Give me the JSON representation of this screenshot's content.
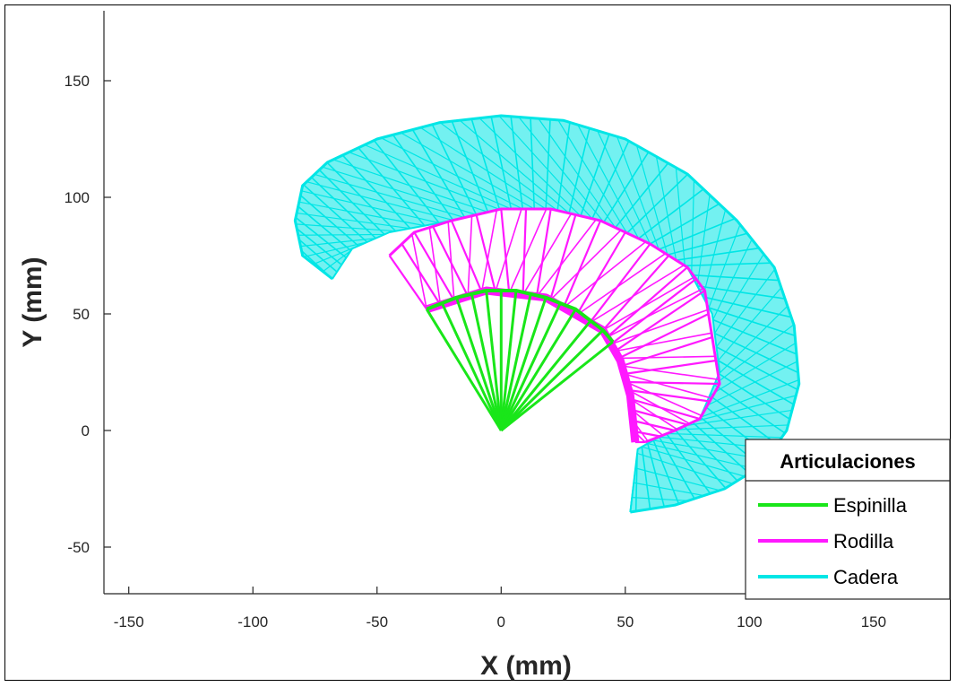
{
  "chart_data": {
    "type": "line",
    "xlabel": "X (mm)",
    "ylabel": "Y (mm)",
    "xlim": [
      -160,
      180
    ],
    "ylim": [
      -70,
      180
    ],
    "xticks": [
      -150,
      -100,
      -50,
      0,
      50,
      100,
      150
    ],
    "yticks": [
      -50,
      0,
      50,
      100,
      150
    ],
    "grid": false,
    "legend": {
      "title": "Articulaciones",
      "placement": "bottom-right",
      "entries": [
        "Espinilla",
        "Rodilla",
        "Cadera"
      ]
    },
    "series": [
      {
        "name": "Espinilla",
        "color": "#19e619",
        "segments": [
          [
            [
              0,
              0
            ],
            [
              -30,
              52
            ]
          ],
          [
            [
              0,
              0
            ],
            [
              -24,
              55
            ]
          ],
          [
            [
              0,
              0
            ],
            [
              -18,
              57
            ]
          ],
          [
            [
              0,
              0
            ],
            [
              -12,
              59
            ]
          ],
          [
            [
              0,
              0
            ],
            [
              -6,
              60
            ]
          ],
          [
            [
              0,
              0
            ],
            [
              0,
              60
            ]
          ],
          [
            [
              0,
              0
            ],
            [
              6,
              60
            ]
          ],
          [
            [
              0,
              0
            ],
            [
              12,
              59
            ]
          ],
          [
            [
              0,
              0
            ],
            [
              18,
              57
            ]
          ],
          [
            [
              0,
              0
            ],
            [
              24,
              55
            ]
          ],
          [
            [
              0,
              0
            ],
            [
              30,
              52
            ]
          ],
          [
            [
              0,
              0
            ],
            [
              36,
              47
            ]
          ],
          [
            [
              0,
              0
            ],
            [
              41,
              43
            ]
          ],
          [
            [
              0,
              0
            ],
            [
              45,
              38
            ]
          ]
        ],
        "arc": [
          [
            -30,
            52
          ],
          [
            -18,
            57
          ],
          [
            -6,
            60
          ],
          [
            6,
            60
          ],
          [
            18,
            57
          ],
          [
            30,
            52
          ],
          [
            41,
            43
          ],
          [
            45,
            38
          ]
        ]
      },
      {
        "name": "Rodilla",
        "color": "#ff19ff",
        "knee_path": [
          [
            -30,
            52
          ],
          [
            -6,
            60
          ],
          [
            18,
            57
          ],
          [
            41,
            43
          ],
          [
            48,
            30
          ],
          [
            52,
            15
          ],
          [
            54,
            -5
          ]
        ],
        "links_to": [
          [
            -45,
            75
          ],
          [
            -35,
            85
          ],
          [
            -20,
            90
          ],
          [
            0,
            95
          ],
          [
            20,
            95
          ],
          [
            40,
            90
          ],
          [
            60,
            80
          ],
          [
            75,
            70
          ],
          [
            82,
            60
          ],
          [
            85,
            40
          ],
          [
            88,
            20
          ],
          [
            80,
            5
          ],
          [
            70,
            0
          ],
          [
            58,
            -5
          ]
        ]
      },
      {
        "name": "Cadera",
        "color": "#00e6e6",
        "outer_outline": [
          [
            -68,
            65
          ],
          [
            -80,
            75
          ],
          [
            -83,
            90
          ],
          [
            -80,
            105
          ],
          [
            -70,
            115
          ],
          [
            -50,
            125
          ],
          [
            -25,
            132
          ],
          [
            0,
            135
          ],
          [
            25,
            133
          ],
          [
            50,
            125
          ],
          [
            75,
            110
          ],
          [
            95,
            90
          ],
          [
            110,
            70
          ],
          [
            118,
            45
          ],
          [
            120,
            20
          ],
          [
            115,
            0
          ],
          [
            105,
            -15
          ],
          [
            90,
            -25
          ],
          [
            70,
            -32
          ],
          [
            52,
            -35
          ]
        ],
        "inner_outline": [
          [
            -68,
            65
          ],
          [
            -60,
            78
          ],
          [
            -45,
            85
          ],
          [
            -20,
            90
          ],
          [
            0,
            95
          ],
          [
            20,
            95
          ],
          [
            40,
            90
          ],
          [
            60,
            80
          ],
          [
            75,
            70
          ],
          [
            85,
            50
          ],
          [
            88,
            25
          ],
          [
            80,
            5
          ],
          [
            65,
            -2
          ],
          [
            55,
            -8
          ],
          [
            52,
            -35
          ]
        ]
      }
    ]
  }
}
